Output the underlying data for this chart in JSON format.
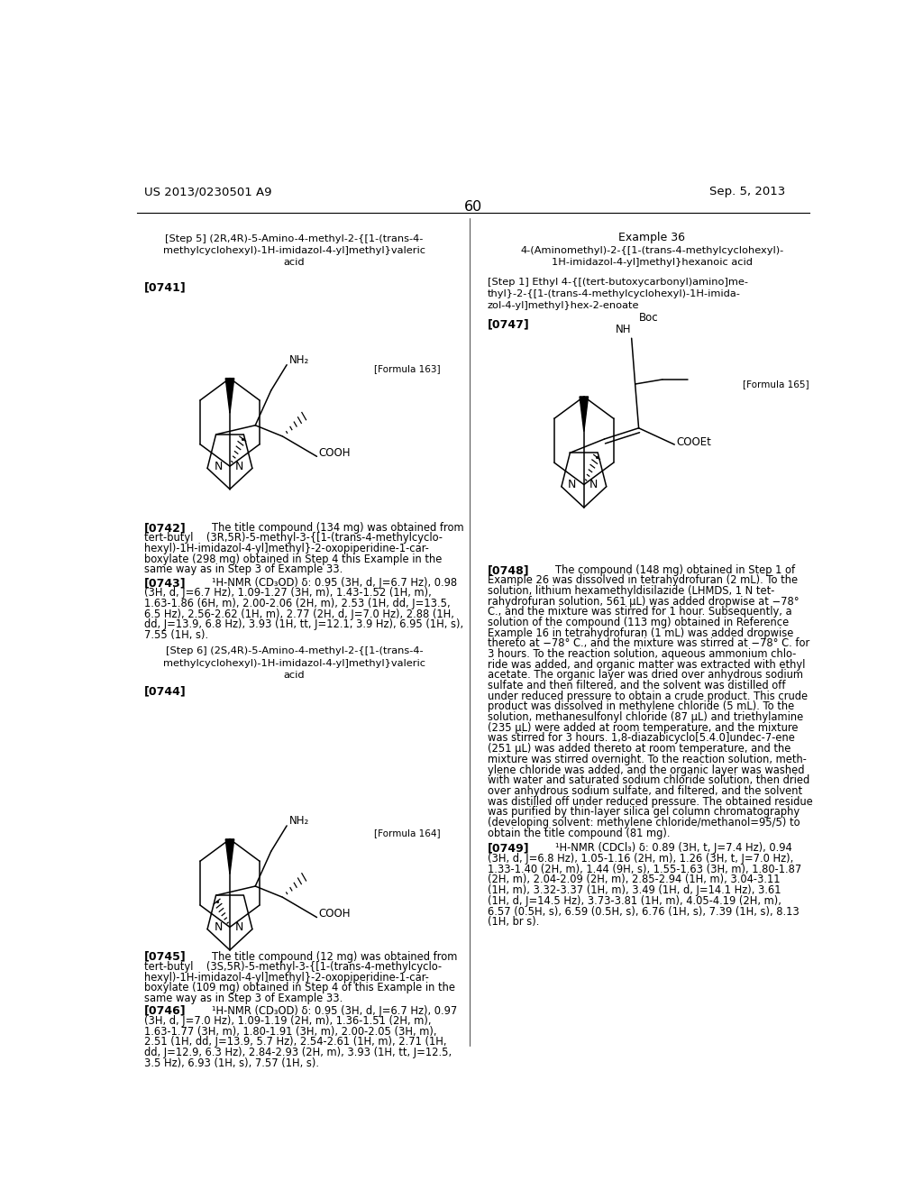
{
  "background_color": "#ffffff",
  "header_left": "US 2013/0230501 A9",
  "header_right": "Sep. 5, 2013",
  "page_number": "60",
  "step5_title_lines": [
    "[Step 5] (2R,4R)-5-Amino-4-methyl-2-{[1-(trans-4-",
    "methylcyclohexyl)-1H-imidazol-4-yl]methyl}valeric",
    "acid"
  ],
  "step6_title_lines": [
    "[Step 6] (2S,4R)-5-Amino-4-methyl-2-{[1-(trans-4-",
    "methylcyclohexyl)-1H-imidazol-4-yl]methyl}valeric",
    "acid"
  ],
  "example36_title": "Example 36",
  "example36_subtitle_lines": [
    "4-(Aminomethyl)-2-{[1-(trans-4-methylcyclohexyl)-",
    "1H-imidazol-4-yl]methyl}hexanoic acid"
  ],
  "step1_title_lines": [
    "[Step 1] Ethyl 4-{[(tert-butoxycarbonyl)amino]me-",
    "thyl}-2-{[1-(trans-4-methylcyclohexyl)-1H-imida-",
    "zol-4-yl]methyl}hex-2-enoate"
  ],
  "para_0741": "[0741]",
  "para_0742_id": "[0742]",
  "para_0742_first": "The title compound (134 mg) was obtained from",
  "para_0742_lines": [
    "tert-butyl    (3R,5R)-5-methyl-3-{[1-(trans-4-methylcyclo-",
    "hexyl)-1H-imidazol-4-yl]methyl}-2-oxopiperidine-1-car-",
    "boxylate (298 mg) obtained in Step 4 this Example in the",
    "same way as in Step 3 of Example 33."
  ],
  "para_0743_id": "[0743]",
  "para_0743_first": "¹H-NMR (CD₃OD) δ: 0.95 (3H, d, J=6.7 Hz), 0.98",
  "para_0743_lines": [
    "(3H, d, J=6.7 Hz), 1.09-1.27 (3H, m), 1.43-1.52 (1H, m),",
    "1.63-1.86 (6H, m), 2.00-2.06 (2H, m), 2.53 (1H, dd, J=13.5,",
    "6.5 Hz), 2.56-2.62 (1H, m), 2.77 (2H, d, J=7.0 Hz), 2.88 (1H,",
    "dd, J=13.9, 6.8 Hz), 3.93 (1H, tt, J=12.1, 3.9 Hz), 6.95 (1H, s),",
    "7.55 (1H, s)."
  ],
  "para_0744": "[0744]",
  "para_0745_id": "[0745]",
  "para_0745_first": "The title compound (12 mg) was obtained from",
  "para_0745_lines": [
    "tert-butyl    (3S,5R)-5-methyl-3-{[1-(trans-4-methylcyclo-",
    "hexyl)-1H-imidazol-4-yl]methyl}-2-oxopiperidine-1-car-",
    "boxylate (109 mg) obtained in Step 4 of this Example in the",
    "same way as in Step 3 of Example 33."
  ],
  "para_0746_id": "[0746]",
  "para_0746_first": "¹H-NMR (CD₃OD) δ: 0.95 (3H, d, J=6.7 Hz), 0.97",
  "para_0746_lines": [
    "(3H, d, J=7.0 Hz), 1.09-1.19 (2H, m), 1.36-1.51 (2H, m),",
    "1.63-1.77 (3H, m), 1.80-1.91 (3H, m), 2.00-2.05 (3H, m),",
    "2.51 (1H, dd, J=13.9, 5.7 Hz), 2.54-2.61 (1H, m), 2.71 (1H,",
    "dd, J=12.9, 6.3 Hz), 2.84-2.93 (2H, m), 3.93 (1H, tt, J=12.5,",
    "3.5 Hz), 6.93 (1H, s), 7.57 (1H, s)."
  ],
  "para_0747": "[0747]",
  "para_0748_id": "[0748]",
  "para_0748_first": "The compound (148 mg) obtained in Step 1 of",
  "para_0748_lines": [
    "Example 26 was dissolved in tetrahydrofuran (2 mL). To the",
    "solution, lithium hexamethyldisilazide (LHMDS, 1 N tet-",
    "rahydrofuran solution, 561 μL) was added dropwise at −78°",
    "C., and the mixture was stirred for 1 hour. Subsequently, a",
    "solution of the compound (113 mg) obtained in Reference",
    "Example 16 in tetrahydrofuran (1 mL) was added dropwise",
    "thereto at −78° C., and the mixture was stirred at −78° C. for",
    "3 hours. To the reaction solution, aqueous ammonium chlo-",
    "ride was added, and organic matter was extracted with ethyl",
    "acetate. The organic layer was dried over anhydrous sodium",
    "sulfate and then filtered, and the solvent was distilled off",
    "under reduced pressure to obtain a crude product. This crude",
    "product was dissolved in methylene chloride (5 mL). To the",
    "solution, methanesulfonyl chloride (87 μL) and triethylamine",
    "(235 μL) were added at room temperature, and the mixture",
    "was stirred for 3 hours. 1,8-diazabicyclo[5.4.0]undec-7-ene",
    "(251 μL) was added thereto at room temperature, and the",
    "mixture was stirred overnight. To the reaction solution, meth-",
    "ylene chloride was added, and the organic layer was washed",
    "with water and saturated sodium chloride solution, then dried",
    "over anhydrous sodium sulfate, and filtered, and the solvent",
    "was distilled off under reduced pressure. The obtained residue",
    "was purified by thin-layer silica gel column chromatography",
    "(developing solvent: methylene chloride/methanol=95/5) to",
    "obtain the title compound (81 mg)."
  ],
  "para_0749_id": "[0749]",
  "para_0749_first": "¹H-NMR (CDCl₃) δ: 0.89 (3H, t, J=7.4 Hz), 0.94",
  "para_0749_lines": [
    "(3H, d, J=6.8 Hz), 1.05-1.16 (2H, m), 1.26 (3H, t, J=7.0 Hz),",
    "1.33-1.40 (2H, m), 1.44 (9H, s), 1.55-1.63 (3H, m), 1.80-1.87",
    "(2H, m), 2.04-2.09 (2H, m), 2.85-2.94 (1H, m), 3.04-3.11",
    "(1H, m), 3.32-3.37 (1H, m), 3.49 (1H, d, J=14.1 Hz), 3.61",
    "(1H, d, J=14.5 Hz), 3.73-3.81 (1H, m), 4.05-4.19 (2H, m),",
    "6.57 (0.5H, s), 6.59 (0.5H, s), 6.76 (1H, s), 7.39 (1H, s), 8.13",
    "(1H, br s)."
  ],
  "formula163_label": "[Formula 163]",
  "formula164_label": "[Formula 164]",
  "formula165_label": "[Formula 165]"
}
